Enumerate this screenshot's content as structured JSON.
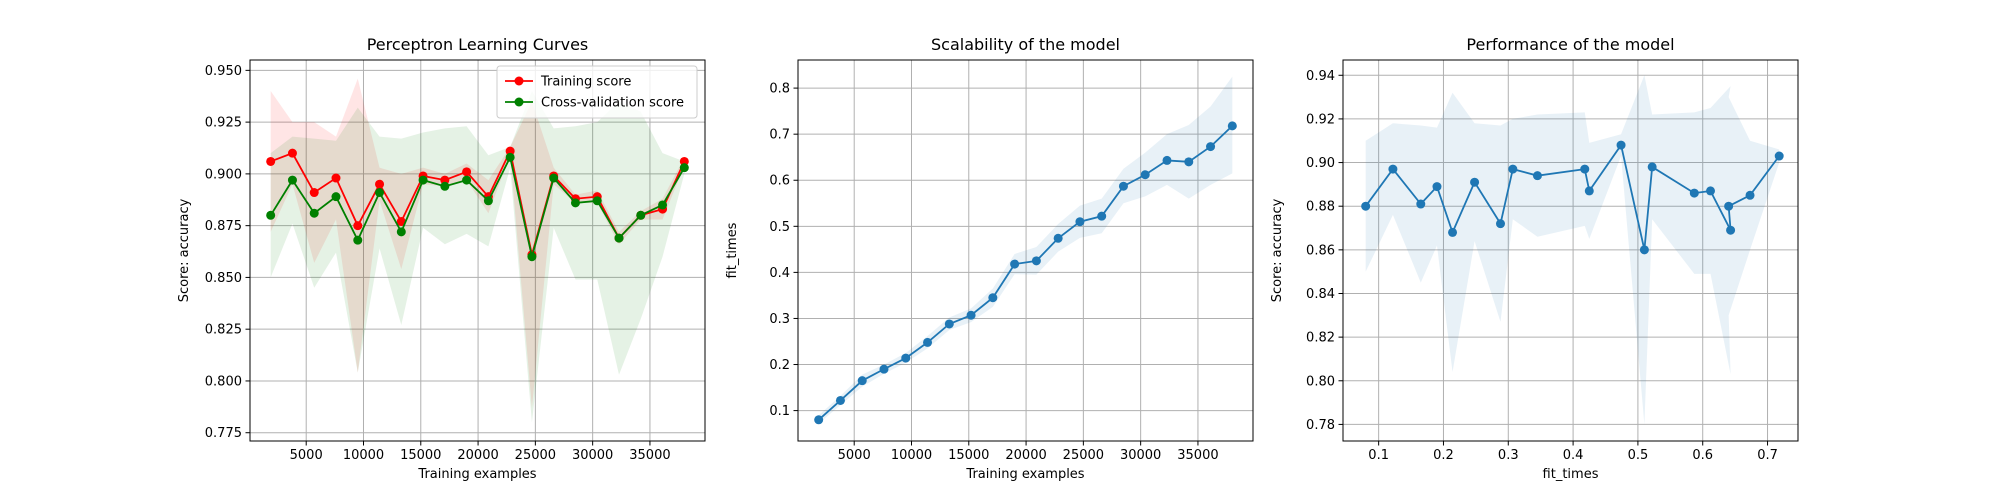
{
  "chart_data": [
    {
      "type": "line",
      "title": "Perceptron Learning Curves",
      "xlabel": "Training examples",
      "ylabel": "Score: accuracy",
      "x": [
        1900,
        3800,
        5700,
        7600,
        9500,
        11400,
        13300,
        15200,
        17100,
        19000,
        20900,
        22800,
        24700,
        26600,
        28500,
        30400,
        32300,
        34200,
        36100,
        38000
      ],
      "series": [
        {
          "name": "Training score",
          "color": "#ff0000",
          "values": [
            0.906,
            0.91,
            0.891,
            0.898,
            0.875,
            0.895,
            0.877,
            0.899,
            0.897,
            0.901,
            0.889,
            0.911,
            0.861,
            0.899,
            0.888,
            0.889,
            0.869,
            0.88,
            0.883,
            0.906
          ],
          "upper": [
            0.94,
            0.925,
            0.925,
            0.918,
            0.946,
            0.903,
            0.9,
            0.903,
            0.9,
            0.905,
            0.897,
            0.913,
            0.935,
            0.903,
            0.89,
            0.892,
            0.872,
            0.882,
            0.888,
            0.908
          ],
          "lower": [
            0.872,
            0.895,
            0.857,
            0.878,
            0.804,
            0.887,
            0.854,
            0.895,
            0.894,
            0.897,
            0.881,
            0.909,
            0.787,
            0.895,
            0.886,
            0.886,
            0.866,
            0.878,
            0.878,
            0.904
          ]
        },
        {
          "name": "Cross-validation score",
          "color": "#008000",
          "values": [
            0.88,
            0.897,
            0.881,
            0.889,
            0.868,
            0.891,
            0.872,
            0.897,
            0.894,
            0.897,
            0.887,
            0.908,
            0.86,
            0.898,
            0.886,
            0.887,
            0.869,
            0.88,
            0.885,
            0.903
          ],
          "upper": [
            0.91,
            0.918,
            0.917,
            0.916,
            0.932,
            0.918,
            0.917,
            0.92,
            0.922,
            0.923,
            0.909,
            0.913,
            0.94,
            0.922,
            0.923,
            0.925,
            0.935,
            0.93,
            0.91,
            0.906
          ],
          "lower": [
            0.85,
            0.876,
            0.845,
            0.862,
            0.804,
            0.864,
            0.827,
            0.874,
            0.866,
            0.871,
            0.865,
            0.903,
            0.78,
            0.874,
            0.849,
            0.849,
            0.803,
            0.83,
            0.86,
            0.9
          ]
        }
      ],
      "xlim": [
        95,
        39805
      ],
      "ylim": [
        0.771,
        0.955
      ],
      "xticks": [
        5000,
        10000,
        15000,
        20000,
        25000,
        30000,
        35000
      ],
      "yticks": [
        0.775,
        {
          "value": 0.8,
          "label": "0.800"
        },
        0.825,
        {
          "value": 0.85,
          "label": "0.850"
        },
        0.875,
        {
          "value": 0.9,
          "label": "0.900"
        },
        0.925,
        {
          "value": 0.95,
          "label": "0.950"
        }
      ],
      "grid": true,
      "legend": "upper right"
    },
    {
      "type": "line",
      "title": "Scalability of the model",
      "xlabel": "Training examples",
      "ylabel": "fit_times",
      "x": [
        1900,
        3800,
        5700,
        7600,
        9500,
        11400,
        13300,
        15200,
        17100,
        19000,
        20900,
        22800,
        24700,
        26600,
        28500,
        30400,
        32300,
        34200,
        36100,
        38000
      ],
      "series": [
        {
          "color": "#1f77b4",
          "values": [
            0.08,
            0.122,
            0.165,
            0.19,
            0.214,
            0.248,
            0.288,
            0.307,
            0.345,
            0.418,
            0.425,
            0.474,
            0.51,
            0.522,
            0.587,
            0.612,
            0.643,
            0.64,
            0.673,
            0.718
          ],
          "upper": [
            0.09,
            0.132,
            0.178,
            0.2,
            0.225,
            0.262,
            0.302,
            0.322,
            0.365,
            0.44,
            0.455,
            0.505,
            0.545,
            0.56,
            0.625,
            0.66,
            0.7,
            0.72,
            0.76,
            0.825
          ],
          "lower": [
            0.072,
            0.112,
            0.152,
            0.18,
            0.204,
            0.235,
            0.275,
            0.292,
            0.325,
            0.396,
            0.395,
            0.445,
            0.475,
            0.485,
            0.55,
            0.565,
            0.59,
            0.56,
            0.59,
            0.615
          ]
        }
      ],
      "xlim": [
        95,
        39805
      ],
      "ylim": [
        0.034,
        0.861
      ],
      "xticks": [
        5000,
        10000,
        15000,
        20000,
        25000,
        30000,
        35000
      ],
      "yticks": [
        0.1,
        0.2,
        0.3,
        0.4,
        0.5,
        0.6,
        0.7,
        0.8
      ],
      "grid": true
    },
    {
      "type": "line",
      "title": "Performance of the model",
      "xlabel": "fit_times",
      "ylabel": "Score: accuracy",
      "x": [
        0.08,
        0.122,
        0.165,
        0.19,
        0.214,
        0.248,
        0.288,
        0.307,
        0.345,
        0.418,
        0.425,
        0.474,
        0.51,
        0.522,
        0.587,
        0.612,
        0.643,
        0.64,
        0.673,
        0.718
      ],
      "series": [
        {
          "color": "#1f77b4",
          "values": [
            0.88,
            0.897,
            0.881,
            0.889,
            0.868,
            0.891,
            0.872,
            0.897,
            0.894,
            0.897,
            0.887,
            0.908,
            0.86,
            0.898,
            0.886,
            0.887,
            0.869,
            0.88,
            0.885,
            0.903
          ],
          "upper": [
            0.91,
            0.918,
            0.917,
            0.916,
            0.932,
            0.918,
            0.917,
            0.92,
            0.922,
            0.923,
            0.909,
            0.913,
            0.94,
            0.922,
            0.923,
            0.925,
            0.935,
            0.93,
            0.91,
            0.906
          ],
          "lower": [
            0.85,
            0.876,
            0.845,
            0.862,
            0.804,
            0.864,
            0.827,
            0.874,
            0.866,
            0.871,
            0.865,
            0.903,
            0.78,
            0.874,
            0.849,
            0.849,
            0.803,
            0.83,
            0.86,
            0.9
          ]
        }
      ],
      "xlim": [
        0.045,
        0.747
      ],
      "ylim": [
        0.7724,
        0.947
      ],
      "xticks": [
        0.1,
        0.2,
        0.3,
        0.4,
        0.5,
        0.6,
        0.7
      ],
      "yticks": [
        0.78,
        {
          "value": 0.8,
          "label": "0.80"
        },
        0.82,
        0.84,
        0.86,
        0.88,
        {
          "value": 0.9,
          "label": "0.90"
        },
        0.92,
        0.94
      ],
      "grid": true
    }
  ]
}
